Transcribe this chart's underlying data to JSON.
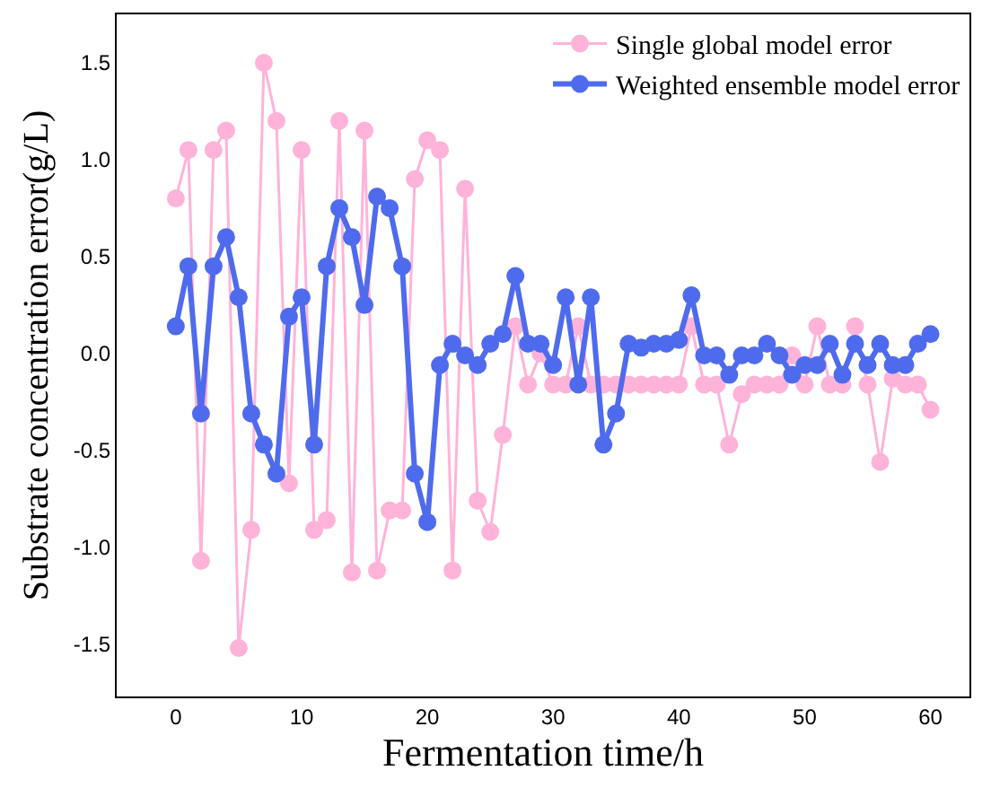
{
  "chart_data": {
    "type": "line",
    "xlabel": "Fermentation time/h",
    "ylabel": "Substrate concentration error(g/L)",
    "x": [
      0,
      1,
      2,
      3,
      4,
      5,
      6,
      7,
      8,
      9,
      10,
      11,
      12,
      13,
      14,
      15,
      16,
      17,
      18,
      19,
      20,
      21,
      22,
      23,
      24,
      25,
      26,
      27,
      28,
      29,
      30,
      31,
      32,
      33,
      34,
      35,
      36,
      37,
      38,
      39,
      40,
      41,
      42,
      43,
      44,
      45,
      46,
      47,
      48,
      49,
      50,
      51,
      52,
      53,
      54,
      55,
      56,
      57,
      58,
      59,
      60
    ],
    "series": [
      {
        "name": "Single global model error",
        "color": "#ffb3d9",
        "values": [
          0.8,
          1.05,
          -1.07,
          1.05,
          1.15,
          -1.52,
          -0.91,
          1.5,
          1.2,
          -0.67,
          1.05,
          -0.91,
          -0.86,
          1.2,
          -1.13,
          1.15,
          -1.12,
          -0.81,
          -0.81,
          0.9,
          1.1,
          1.05,
          -1.12,
          0.85,
          -0.76,
          -0.92,
          -0.42,
          0.14,
          -0.16,
          0.0,
          -0.16,
          -0.16,
          0.14,
          -0.16,
          -0.16,
          -0.16,
          -0.16,
          -0.16,
          -0.16,
          -0.16,
          -0.16,
          0.14,
          -0.16,
          -0.16,
          -0.47,
          -0.21,
          -0.16,
          -0.16,
          -0.16,
          -0.01,
          -0.16,
          0.14,
          -0.16,
          -0.16,
          0.14,
          -0.16,
          -0.56,
          -0.13,
          -0.16,
          -0.16,
          -0.29
        ]
      },
      {
        "name": "Weighted ensemble model error",
        "color": "#4f6bed",
        "values": [
          0.14,
          0.45,
          -0.31,
          0.45,
          0.6,
          0.29,
          -0.31,
          -0.47,
          -0.62,
          0.19,
          0.29,
          -0.47,
          0.45,
          0.75,
          0.6,
          0.25,
          0.81,
          0.75,
          0.45,
          -0.62,
          -0.87,
          -0.06,
          0.05,
          -0.01,
          -0.06,
          0.05,
          0.1,
          0.4,
          0.05,
          0.05,
          -0.06,
          0.29,
          -0.16,
          0.29,
          -0.47,
          -0.31,
          0.05,
          0.03,
          0.05,
          0.05,
          0.07,
          0.3,
          -0.01,
          -0.01,
          -0.11,
          -0.01,
          -0.01,
          0.05,
          -0.01,
          -0.11,
          -0.06,
          -0.06,
          0.05,
          -0.11,
          0.05,
          -0.06,
          0.05,
          -0.06,
          -0.06,
          0.05,
          0.1
        ]
      }
    ],
    "xlim": [
      -4.7,
      63.1
    ],
    "ylim": [
      -1.77,
      1.75
    ],
    "xticks": [
      0,
      10,
      20,
      30,
      40,
      50,
      60
    ],
    "yticks": [
      {
        "value": -1.5,
        "label": "-1.5"
      },
      {
        "value": -1.0,
        "label": "-1.0"
      },
      {
        "value": -0.5,
        "label": "-0.5"
      },
      {
        "value": 0,
        "label": "0.0"
      },
      {
        "value": 0.5,
        "label": "0.5"
      },
      {
        "value": 1.0,
        "label": "1.0"
      },
      {
        "value": 1.5,
        "label": "1.5"
      }
    ],
    "legend": "top right",
    "marker": "circle",
    "line_style": "solid"
  }
}
